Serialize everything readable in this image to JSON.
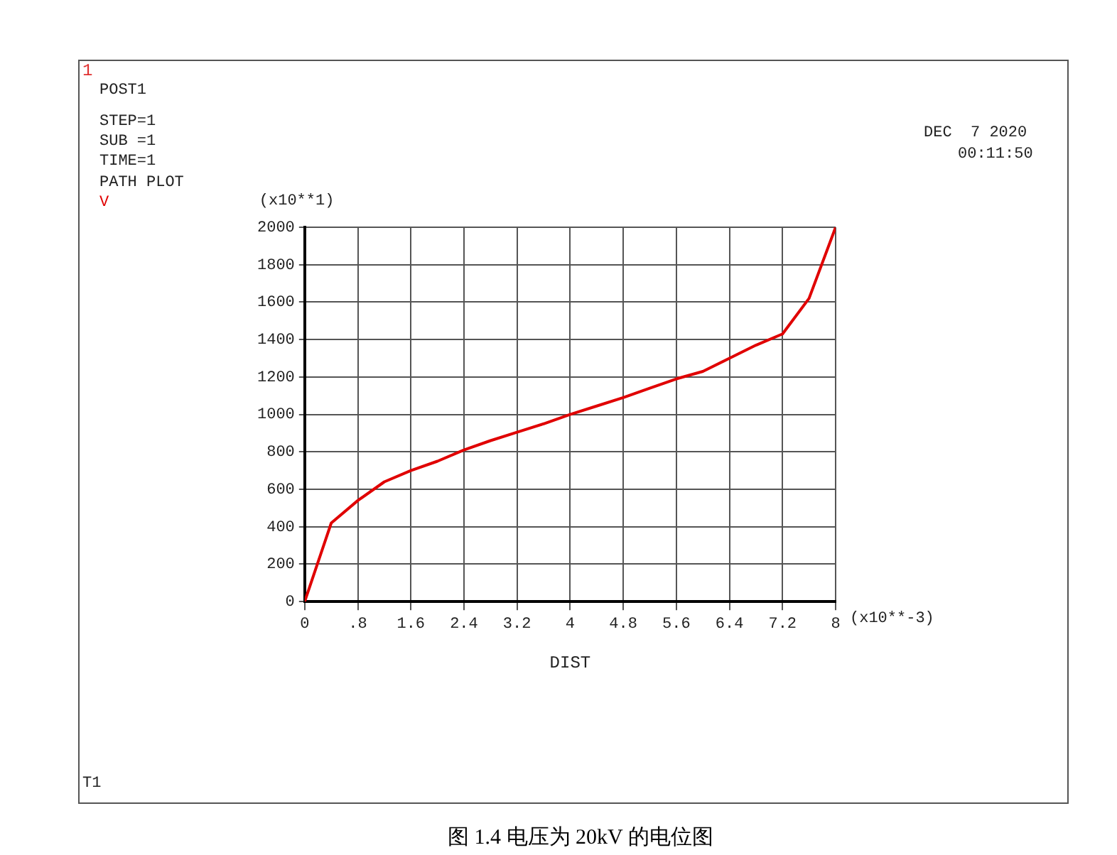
{
  "chart_data": {
    "type": "line",
    "xlabel": "DIST",
    "ylabel": "(x10**1)",
    "x": [
      0,
      0.4,
      0.8,
      1.2,
      1.6,
      2.0,
      2.4,
      2.8,
      3.2,
      3.6,
      4.0,
      4.4,
      4.8,
      5.2,
      5.6,
      6.0,
      6.4,
      6.8,
      7.2,
      7.6,
      8.0
    ],
    "series": [
      {
        "name": "V",
        "color": "#e00000",
        "values": [
          0,
          420,
          540,
          640,
          700,
          750,
          810,
          860,
          905,
          950,
          1000,
          1045,
          1090,
          1140,
          1190,
          1230,
          1300,
          1370,
          1430,
          1620,
          2000
        ]
      }
    ],
    "xlim": [
      0,
      8
    ],
    "xticks": [
      0,
      {
        "value": 0.8,
        "label": ".8"
      },
      1.6,
      2.4,
      3.2,
      4,
      4.8,
      5.6,
      6.4,
      7.2,
      8
    ],
    "ylim": [
      0,
      2000
    ],
    "yticks": [
      0,
      200,
      400,
      600,
      800,
      1000,
      1200,
      1400,
      1600,
      1800,
      2000
    ],
    "grid": true,
    "legend": "top left",
    "marker": "none",
    "line_style": "solid",
    "annotations": [
      "1",
      "POST1",
      "STEP=1",
      "SUB =1",
      "TIME=1",
      "PATH PLOT",
      "DEC  7 2020",
      "00:11:50",
      "T1",
      "(x10**-3)",
      "图 1.4 电压为 20kV 的电位图"
    ]
  }
}
